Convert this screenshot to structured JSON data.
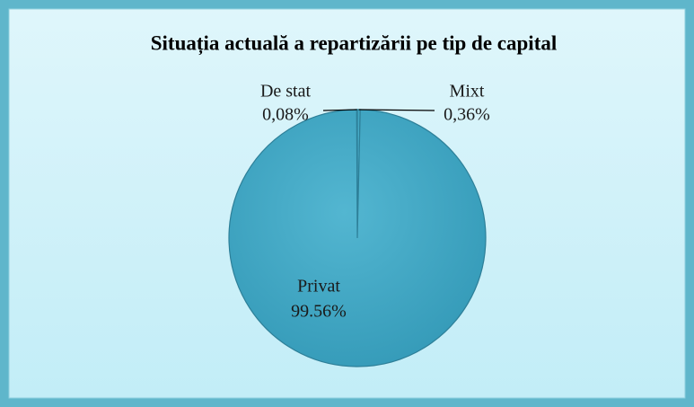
{
  "chart_data": {
    "type": "pie",
    "title": "Situația actuală a repartizării pe tip de capital",
    "categories": [
      "De stat",
      "Mixt",
      "Privat"
    ],
    "values": [
      0.08,
      0.36,
      99.56
    ],
    "value_labels": [
      "0,08%",
      "0,36%",
      "99.56%"
    ],
    "color": "#3fa7c4"
  }
}
